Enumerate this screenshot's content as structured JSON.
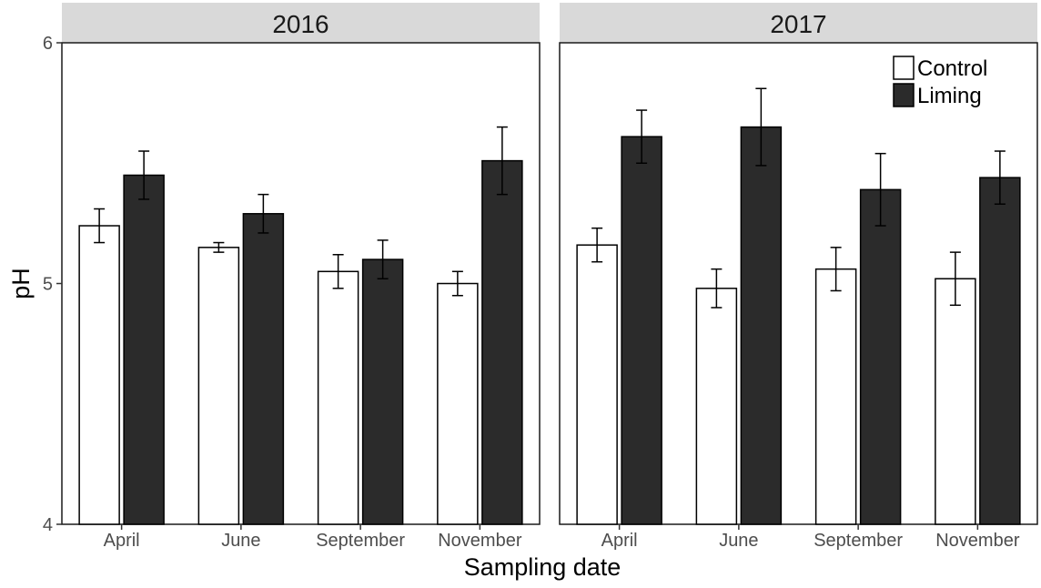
{
  "chart_data": {
    "type": "bar",
    "xlabel": "Sampling date",
    "ylabel": "pH",
    "ylim": [
      4,
      6
    ],
    "yticks": [
      4,
      5,
      6
    ],
    "grid": false,
    "legend_position": "top-right",
    "categories": [
      "April",
      "June",
      "September",
      "November"
    ],
    "series_styles": [
      {
        "name": "Control",
        "color": "#ffffff",
        "stroke": "#000000"
      },
      {
        "name": "Liming",
        "color": "#2b2b2b",
        "stroke": "#000000"
      }
    ],
    "panels": [
      {
        "title": "2016",
        "series": [
          {
            "name": "Control",
            "values": [
              5.24,
              5.15,
              5.05,
              5.0
            ],
            "errors": [
              0.07,
              0.02,
              0.07,
              0.05
            ]
          },
          {
            "name": "Liming",
            "values": [
              5.45,
              5.29,
              5.1,
              5.51
            ],
            "errors": [
              0.1,
              0.08,
              0.08,
              0.14
            ]
          }
        ]
      },
      {
        "title": "2017",
        "series": [
          {
            "name": "Control",
            "values": [
              5.16,
              4.98,
              5.06,
              5.02
            ],
            "errors": [
              0.07,
              0.08,
              0.09,
              0.11
            ]
          },
          {
            "name": "Liming",
            "values": [
              5.61,
              5.65,
              5.39,
              5.44
            ],
            "errors": [
              0.11,
              0.16,
              0.15,
              0.11
            ]
          }
        ]
      }
    ]
  }
}
